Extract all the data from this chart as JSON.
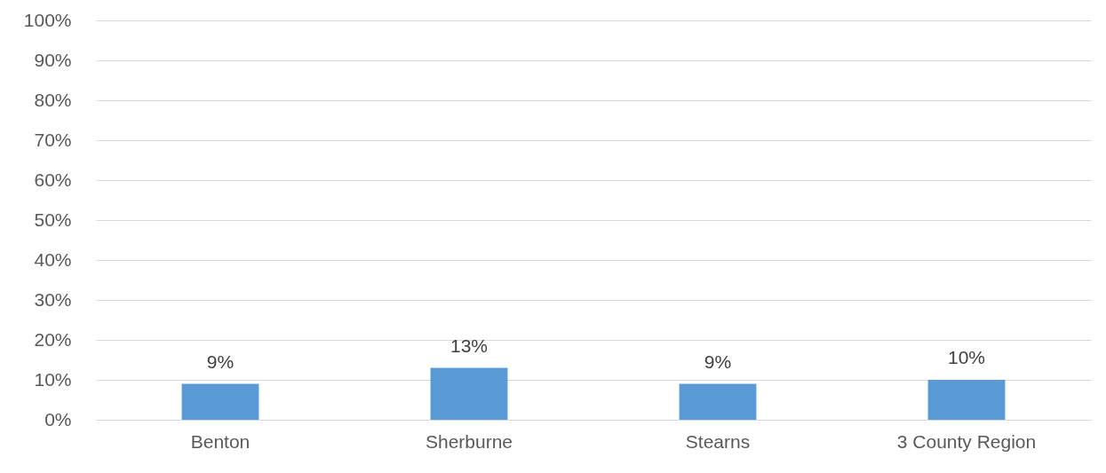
{
  "chart_data": {
    "type": "bar",
    "categories": [
      "Benton",
      "Sherburne",
      "Stearns",
      "3 County Region"
    ],
    "values": [
      9,
      13,
      9,
      10
    ],
    "value_labels": [
      "9%",
      "13%",
      "9%",
      "10%"
    ],
    "color": "#5b9bd5",
    "ylim": [
      0,
      100
    ],
    "yticks": [
      {
        "value": 0,
        "label": "0%"
      },
      {
        "value": 10,
        "label": "10%"
      },
      {
        "value": 20,
        "label": "20%"
      },
      {
        "value": 30,
        "label": "30%"
      },
      {
        "value": 40,
        "label": "40%"
      },
      {
        "value": 50,
        "label": "50%"
      },
      {
        "value": 60,
        "label": "60%"
      },
      {
        "value": 70,
        "label": "70%"
      },
      {
        "value": 80,
        "label": "80%"
      },
      {
        "value": 90,
        "label": "90%"
      },
      {
        "value": 100,
        "label": "100%"
      }
    ],
    "grid": "y"
  }
}
